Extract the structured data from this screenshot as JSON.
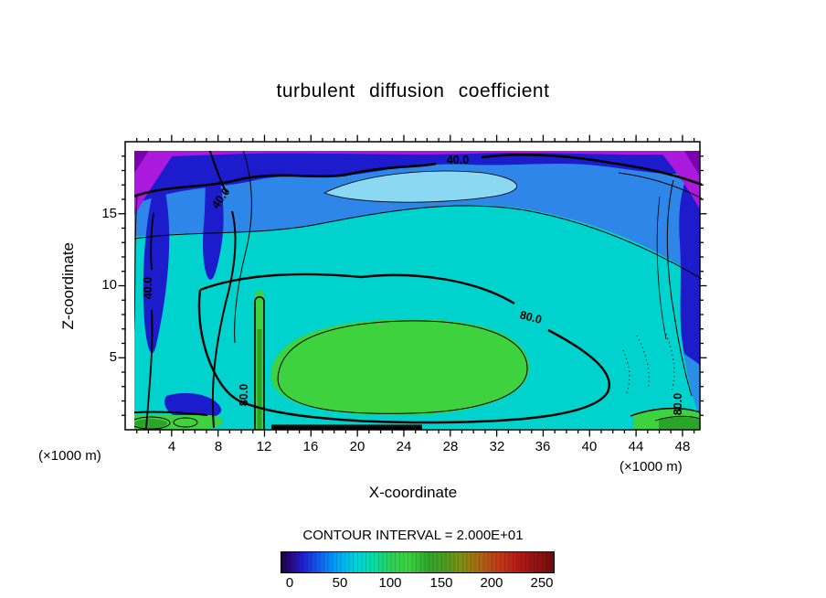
{
  "chart_data": {
    "type": "heatmap",
    "subtype": "filled_contour",
    "title": "turbulent diffusion coefficient",
    "xlabel": "X-coordinate",
    "ylabel": "Z-coordinate",
    "x_unit_left": "(×1000 m)",
    "x_unit_right": "(×1000 m)",
    "contour_interval_label": "CONTOUR INTERVAL = 2.000E+01",
    "contour_interval": 20,
    "x_range": [
      0,
      49.5
    ],
    "z_range": [
      0,
      20
    ],
    "x_ticks": [
      4,
      8,
      12,
      16,
      20,
      24,
      28,
      32,
      36,
      40,
      44,
      48
    ],
    "x_tick_labels": [
      "4",
      "8",
      "12",
      "16",
      "20",
      "24",
      "28",
      "32",
      "36",
      "40",
      "44",
      "48"
    ],
    "y_ticks": [
      15,
      10,
      5
    ],
    "y_tick_labels": [
      "15",
      "10",
      "5"
    ],
    "axes": {
      "x": {
        "min": 0,
        "max": 49.5,
        "minor_step": 1,
        "major_every": 4
      },
      "z": {
        "min": 0,
        "max": 20,
        "minor_step": 1,
        "major_every": 5
      }
    },
    "contour_labels": [
      {
        "text": "40.0",
        "value": 40,
        "x": 28.6,
        "z": 18.7,
        "angle": 0
      },
      {
        "text": "40.0",
        "value": 40,
        "x": 8.5,
        "z": 15.9,
        "angle": -55
      },
      {
        "text": "40.0",
        "value": 40,
        "x": 2.3,
        "z": 9.8,
        "angle": -90
      },
      {
        "text": "80.0",
        "value": 80,
        "x": 34.9,
        "z": 7.8,
        "angle": 14
      },
      {
        "text": "80.0",
        "value": 80,
        "x": 10.5,
        "z": 2.5,
        "angle": -90
      },
      {
        "text": "80.0",
        "value": 80,
        "x": 47.9,
        "z": 1.8,
        "angle": -90
      }
    ],
    "colorbar": {
      "min": 0,
      "max": 250,
      "tick_labels": [
        "0",
        "50",
        "100",
        "150",
        "200",
        "250"
      ],
      "ticks": [
        0,
        50,
        100,
        150,
        200,
        250
      ]
    },
    "palette": {
      "purple_low": "#aa19dc",
      "dark_purple_corner": "#7a00b0",
      "dark_blue": "#1c1ccd",
      "blue": "#2e86e8",
      "cyan": "#00d2cd",
      "pale_cyan": "#9ae6f2",
      "green": "#3ed23e",
      "dark_green": "#2aa52a"
    },
    "grid_estimate": {
      "approximate": true,
      "x": [
        0,
        4,
        8,
        12,
        16,
        20,
        24,
        28,
        32,
        36,
        40,
        44,
        48
      ],
      "z": [
        2,
        6,
        10,
        14,
        18
      ],
      "values": [
        [
          90,
          60,
          70,
          90,
          105,
          115,
          115,
          110,
          100,
          90,
          75,
          60,
          70
        ],
        [
          60,
          50,
          60,
          80,
          95,
          105,
          110,
          105,
          100,
          85,
          70,
          55,
          50
        ],
        [
          35,
          40,
          55,
          65,
          75,
          80,
          80,
          80,
          75,
          70,
          60,
          50,
          40
        ],
        [
          30,
          35,
          45,
          55,
          60,
          60,
          60,
          60,
          55,
          50,
          45,
          40,
          35
        ],
        [
          15,
          25,
          30,
          35,
          35,
          35,
          35,
          35,
          35,
          30,
          25,
          20,
          10
        ]
      ]
    }
  }
}
